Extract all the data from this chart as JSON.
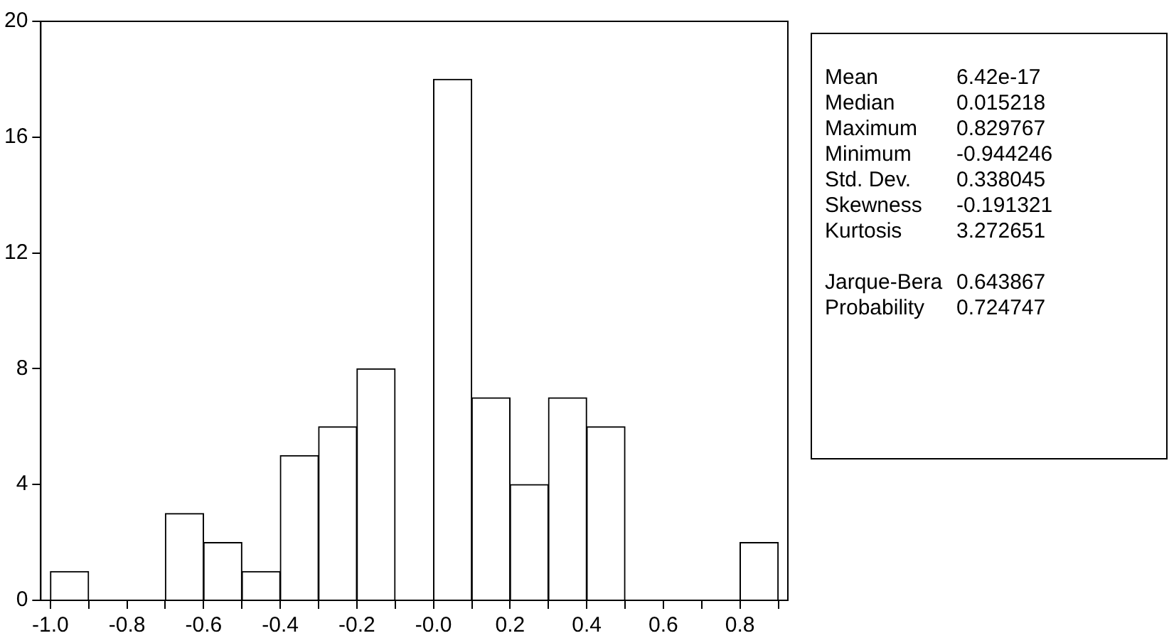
{
  "chart_data": [
    {
      "type": "histogram",
      "bins": [
        -1.0,
        -0.9,
        -0.8,
        -0.7,
        -0.6,
        -0.5,
        -0.4,
        -0.3,
        -0.2,
        -0.1,
        0.0,
        0.1,
        0.2,
        0.3,
        0.4,
        0.5,
        0.6,
        0.7,
        0.8,
        0.9
      ],
      "values": [
        1,
        0,
        0,
        3,
        2,
        1,
        5,
        6,
        8,
        0,
        18,
        7,
        4,
        7,
        6,
        0,
        0,
        0,
        2
      ],
      "color": "#ffffff",
      "xlim": [
        -1.025,
        0.925
      ],
      "xticks": [
        {
          "value": -1.0,
          "label": "-1.0"
        },
        {
          "value": -0.9,
          "label": null
        },
        {
          "value": -0.8,
          "label": "-0.8"
        },
        {
          "value": -0.7,
          "label": null
        },
        {
          "value": -0.6,
          "label": "-0.6"
        },
        {
          "value": -0.5,
          "label": null
        },
        {
          "value": -0.4,
          "label": "-0.4"
        },
        {
          "value": -0.3,
          "label": null
        },
        {
          "value": -0.2,
          "label": "-0.2"
        },
        {
          "value": -0.1,
          "label": null
        },
        {
          "value": 0,
          "label": "-0.0"
        },
        {
          "value": 0.1,
          "label": null
        },
        {
          "value": 0.2,
          "label": "0.2"
        },
        {
          "value": 0.3,
          "label": null
        },
        {
          "value": 0.4,
          "label": "0.4"
        },
        {
          "value": 0.5,
          "label": null
        },
        {
          "value": 0.6,
          "label": "0.6"
        },
        {
          "value": 0.7,
          "label": null
        },
        {
          "value": 0.8,
          "label": "0.8"
        },
        {
          "value": 0.9,
          "label": null
        }
      ],
      "ylim": [
        0,
        20
      ],
      "yticks": [
        0,
        4,
        8,
        12,
        16,
        20
      ],
      "grid": false,
      "legend": false
    },
    {
      "type": "other",
      "annotations": [
        "Mean",
        "6.42e-17",
        "Median",
        "0.015218",
        "Maximum",
        "0.829767",
        "Minimum",
        "-0.944246",
        "Std. Dev.",
        "0.338045",
        "Skewness",
        "-0.191321",
        "Kurtosis",
        "3.272651",
        "Jarque-Bera",
        "0.643867",
        "Probability",
        "0.724747"
      ]
    }
  ]
}
